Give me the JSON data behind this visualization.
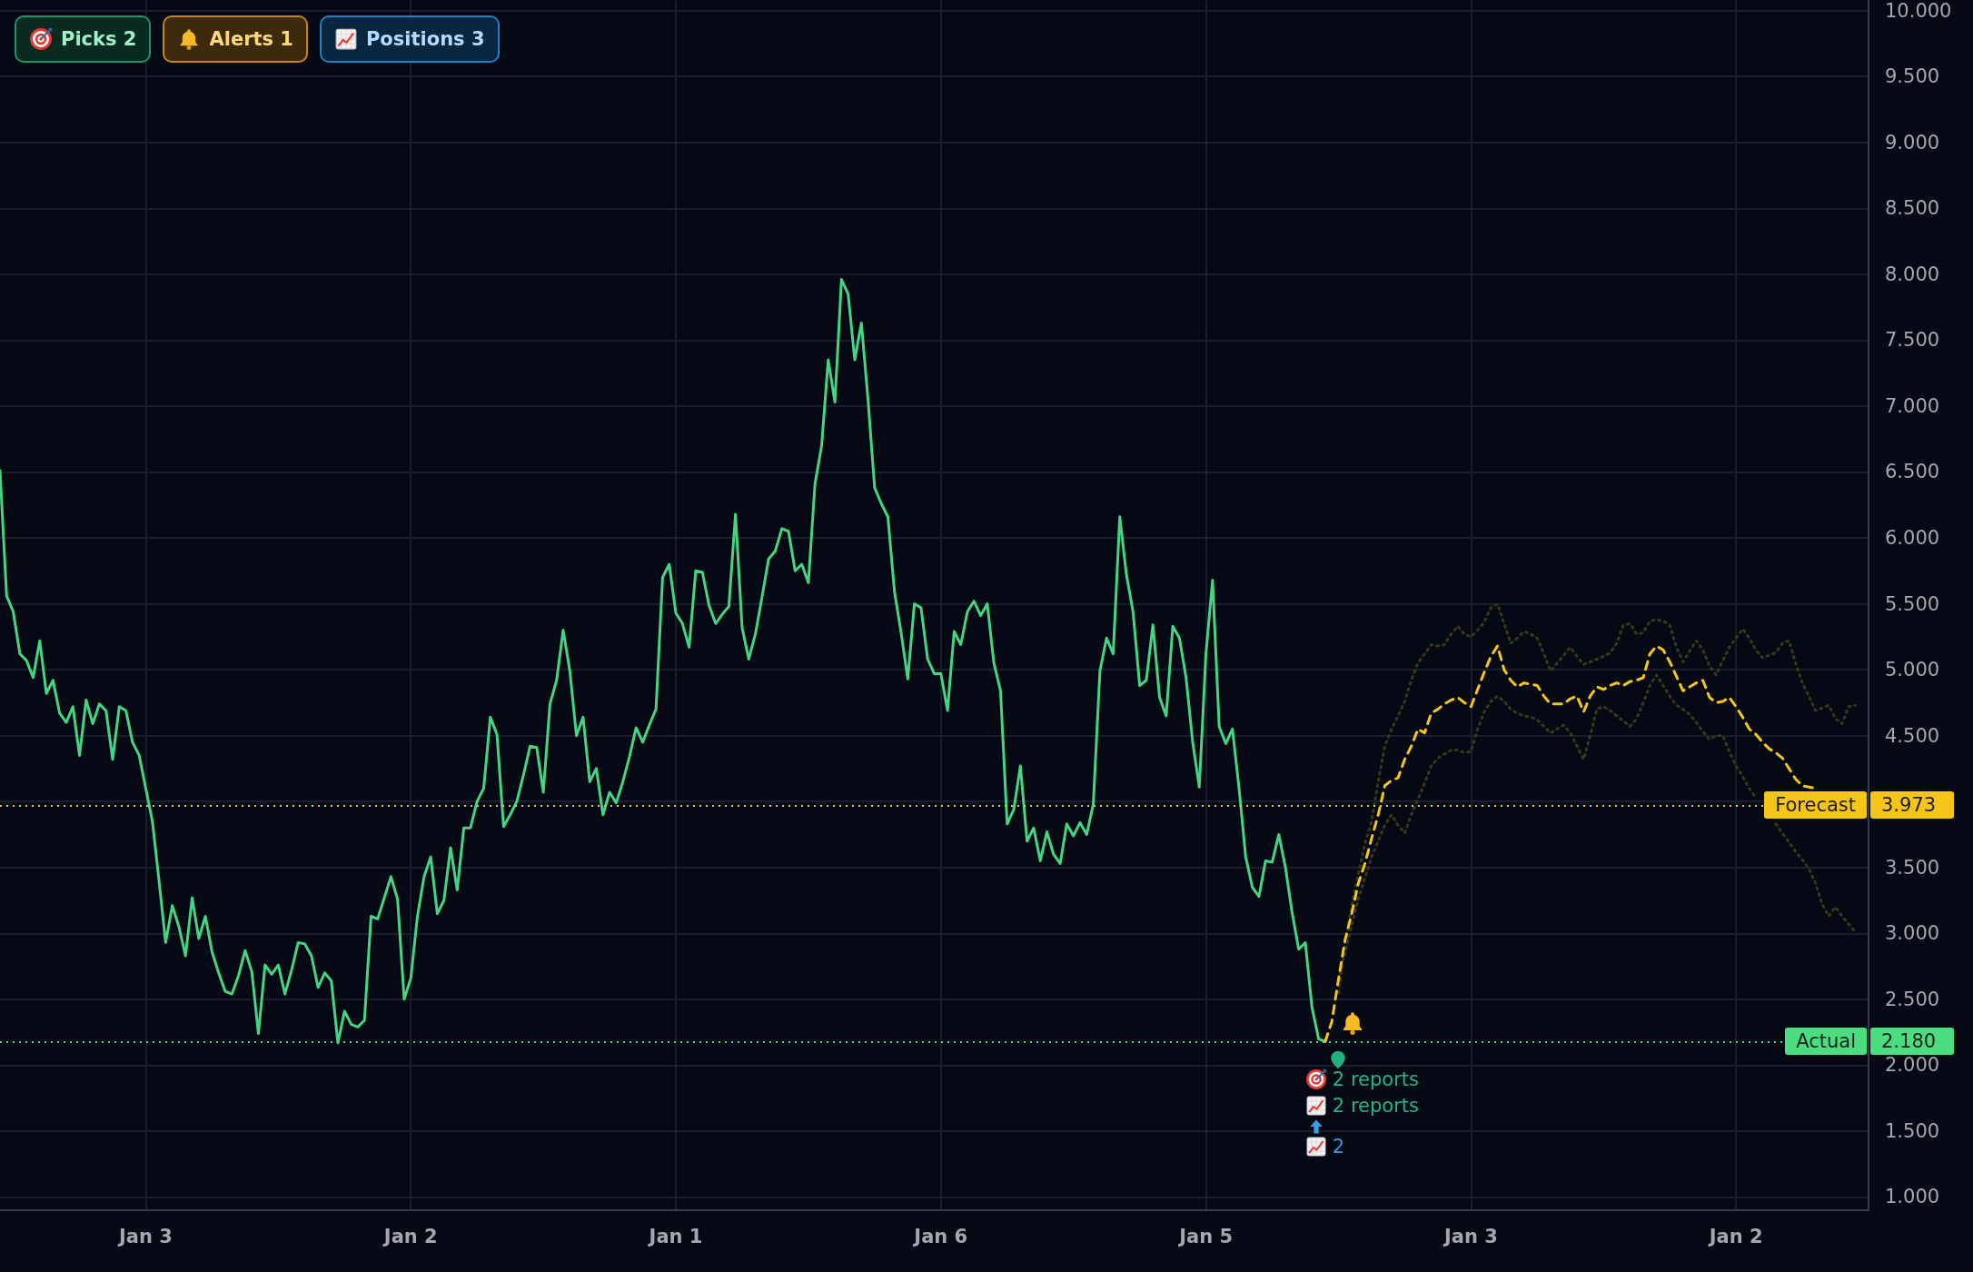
{
  "chart_data": {
    "type": "line",
    "marker": "none",
    "grid": true,
    "categories": [
      null,
      null,
      null,
      null,
      null,
      null,
      null,
      null,
      null,
      null,
      null,
      null,
      null,
      null,
      null,
      null,
      null,
      null,
      null,
      null,
      null,
      null,
      "Jan 3",
      null,
      null,
      null,
      null,
      null,
      null,
      null,
      null,
      null,
      null,
      null,
      null,
      null,
      null,
      null,
      null,
      null,
      null,
      null,
      null,
      null,
      null,
      null,
      null,
      null,
      null,
      null,
      null,
      null,
      null,
      null,
      null,
      null,
      null,
      null,
      null,
      null,
      null,
      null,
      "Jan 2",
      null,
      null,
      null,
      null,
      null,
      null,
      null,
      null,
      null,
      null,
      null,
      null,
      null,
      null,
      null,
      null,
      null,
      null,
      null,
      null,
      null,
      null,
      null,
      null,
      null,
      null,
      null,
      null,
      null,
      null,
      null,
      null,
      null,
      null,
      null,
      null,
      null,
      null,
      null,
      "Jan 1",
      null,
      null,
      null,
      null,
      null,
      null,
      null,
      null,
      null,
      null,
      null,
      null,
      null,
      null,
      null,
      null,
      null,
      null,
      null,
      null,
      null,
      null,
      null,
      null,
      null,
      null,
      null,
      null,
      null,
      null,
      null,
      null,
      null,
      null,
      null,
      null,
      null,
      null,
      null,
      "Jan 6",
      null,
      null,
      null,
      null,
      null,
      null,
      null,
      null,
      null,
      null,
      null,
      null,
      null,
      null,
      null,
      null,
      null,
      null,
      null,
      null,
      null,
      null,
      null,
      null,
      null,
      null,
      null,
      null,
      null,
      null,
      null,
      null,
      null,
      null,
      null,
      null,
      null,
      null,
      null,
      "Jan 5",
      null,
      null,
      null,
      null,
      null,
      null,
      null,
      null,
      null,
      null,
      null,
      null,
      null,
      null,
      null,
      null,
      null,
      null,
      null,
      null,
      null,
      null,
      null,
      null,
      null,
      null,
      null,
      null,
      null,
      null,
      null,
      null,
      null,
      null,
      null,
      null,
      null,
      null,
      null,
      "Jan 3",
      null,
      null,
      null,
      null,
      null,
      null,
      null,
      null,
      null,
      null,
      null,
      null,
      null,
      null,
      null,
      null,
      null,
      null,
      null,
      null,
      null,
      null,
      null,
      null,
      null,
      null,
      null,
      null,
      null,
      null,
      null,
      null,
      null,
      null,
      null,
      null,
      null,
      null,
      null,
      "Jan 2",
      null,
      null,
      null,
      null,
      null,
      null,
      null,
      null,
      null,
      null,
      null,
      null,
      null,
      null,
      null,
      null,
      null,
      null,
      null,
      null
    ],
    "ylim": [
      0.9,
      10.08
    ],
    "yticks": [
      {
        "value": 1,
        "label": "1.000"
      },
      {
        "value": 1.5,
        "label": "1.500"
      },
      {
        "value": 2,
        "label": "2.000"
      },
      {
        "value": 2.5,
        "label": "2.500"
      },
      {
        "value": 3,
        "label": "3.000"
      },
      {
        "value": 3.5,
        "label": "3.500"
      },
      {
        "value": 4,
        "label": null
      },
      {
        "value": 4.5,
        "label": "4.500"
      },
      {
        "value": 5,
        "label": "5.000"
      },
      {
        "value": 5.5,
        "label": "5.500"
      },
      {
        "value": 6,
        "label": "6.000"
      },
      {
        "value": 6.5,
        "label": "6.500"
      },
      {
        "value": 7,
        "label": "7.000"
      },
      {
        "value": 7.5,
        "label": "7.500"
      },
      {
        "value": 8,
        "label": "8.000"
      },
      {
        "value": 8.5,
        "label": "8.500"
      },
      {
        "value": 9,
        "label": "9.000"
      },
      {
        "value": 9.5,
        "label": "9.500"
      },
      {
        "value": 10,
        "label": "10.000"
      }
    ],
    "series": [
      {
        "color": "#3a3617",
        "line_style": "dotted",
        "values": [
          null,
          null,
          null,
          null,
          null,
          null,
          null,
          null,
          null,
          null,
          null,
          null,
          null,
          null,
          null,
          null,
          null,
          null,
          null,
          null,
          null,
          null,
          null,
          null,
          null,
          null,
          null,
          null,
          null,
          null,
          null,
          null,
          null,
          null,
          null,
          null,
          null,
          null,
          null,
          null,
          null,
          null,
          null,
          null,
          null,
          null,
          null,
          null,
          null,
          null,
          null,
          null,
          null,
          null,
          null,
          null,
          null,
          null,
          null,
          null,
          null,
          null,
          null,
          null,
          null,
          null,
          null,
          null,
          null,
          null,
          null,
          null,
          null,
          null,
          null,
          null,
          null,
          null,
          null,
          null,
          null,
          null,
          null,
          null,
          null,
          null,
          null,
          null,
          null,
          null,
          null,
          null,
          null,
          null,
          null,
          null,
          null,
          null,
          null,
          null,
          null,
          null,
          null,
          null,
          null,
          null,
          null,
          null,
          null,
          null,
          null,
          null,
          null,
          null,
          null,
          null,
          null,
          null,
          null,
          null,
          null,
          null,
          null,
          null,
          null,
          null,
          null,
          null,
          null,
          null,
          null,
          null,
          null,
          null,
          null,
          null,
          null,
          null,
          null,
          null,
          null,
          null,
          null,
          null,
          null,
          null,
          null,
          null,
          null,
          null,
          null,
          null,
          null,
          null,
          null,
          null,
          null,
          null,
          null,
          null,
          null,
          null,
          null,
          null,
          null,
          null,
          null,
          null,
          null,
          null,
          null,
          null,
          null,
          null,
          null,
          null,
          null,
          null,
          null,
          null,
          null,
          null,
          null,
          null,
          null,
          null,
          null,
          null,
          null,
          null,
          null,
          null,
          null,
          null,
          null,
          null,
          null,
          null,
          null,
          null,
          null,
          null,
          2.55,
          2.9,
          3.21,
          3.45,
          3.68,
          3.85,
          4.15,
          4.42,
          4.55,
          4.65,
          4.76,
          4.92,
          5.05,
          5.12,
          5.19,
          5.18,
          5.19,
          5.27,
          5.33,
          5.27,
          5.25,
          5.3,
          5.36,
          5.47,
          5.5,
          5.35,
          5.2,
          5.24,
          5.29,
          5.27,
          5.24,
          5.12,
          4.99,
          5.05,
          5.11,
          5.17,
          5.1,
          5.04,
          5.06,
          5.08,
          5.1,
          5.13,
          5.2,
          5.34,
          5.35,
          5.27,
          5.28,
          5.37,
          5.38,
          5.37,
          5.34,
          5.17,
          5.06,
          5.14,
          5.22,
          5.15,
          5.03,
          4.96,
          5.07,
          5.17,
          5.24,
          5.31,
          5.24,
          5.15,
          5.09,
          5.11,
          5.13,
          5.2,
          5.22,
          5.05,
          4.9,
          4.8,
          4.69,
          4.71,
          4.73,
          4.63,
          4.59,
          4.72,
          4.73,
          null,
          null
        ]
      },
      {
        "color": "#3a3617",
        "line_style": "dotted",
        "values": [
          null,
          null,
          null,
          null,
          null,
          null,
          null,
          null,
          null,
          null,
          null,
          null,
          null,
          null,
          null,
          null,
          null,
          null,
          null,
          null,
          null,
          null,
          null,
          null,
          null,
          null,
          null,
          null,
          null,
          null,
          null,
          null,
          null,
          null,
          null,
          null,
          null,
          null,
          null,
          null,
          null,
          null,
          null,
          null,
          null,
          null,
          null,
          null,
          null,
          null,
          null,
          null,
          null,
          null,
          null,
          null,
          null,
          null,
          null,
          null,
          null,
          null,
          null,
          null,
          null,
          null,
          null,
          null,
          null,
          null,
          null,
          null,
          null,
          null,
          null,
          null,
          null,
          null,
          null,
          null,
          null,
          null,
          null,
          null,
          null,
          null,
          null,
          null,
          null,
          null,
          null,
          null,
          null,
          null,
          null,
          null,
          null,
          null,
          null,
          null,
          null,
          null,
          null,
          null,
          null,
          null,
          null,
          null,
          null,
          null,
          null,
          null,
          null,
          null,
          null,
          null,
          null,
          null,
          null,
          null,
          null,
          null,
          null,
          null,
          null,
          null,
          null,
          null,
          null,
          null,
          null,
          null,
          null,
          null,
          null,
          null,
          null,
          null,
          null,
          null,
          null,
          null,
          null,
          null,
          null,
          null,
          null,
          null,
          null,
          null,
          null,
          null,
          null,
          null,
          null,
          null,
          null,
          null,
          null,
          null,
          null,
          null,
          null,
          null,
          null,
          null,
          null,
          null,
          null,
          null,
          null,
          null,
          null,
          null,
          null,
          null,
          null,
          null,
          null,
          null,
          null,
          null,
          null,
          null,
          null,
          null,
          null,
          null,
          null,
          null,
          null,
          null,
          null,
          null,
          null,
          null,
          null,
          null,
          null,
          null,
          null,
          null,
          2.65,
          2.85,
          3.06,
          3.26,
          3.42,
          3.58,
          3.7,
          3.82,
          3.9,
          3.82,
          3.76,
          3.9,
          4.02,
          4.14,
          4.27,
          4.33,
          4.36,
          4.39,
          4.39,
          4.37,
          4.38,
          4.55,
          4.68,
          4.76,
          4.8,
          4.76,
          4.7,
          4.67,
          4.65,
          4.64,
          4.62,
          4.57,
          4.52,
          4.55,
          4.58,
          4.52,
          4.42,
          4.32,
          4.5,
          4.7,
          4.72,
          4.69,
          4.65,
          4.61,
          4.57,
          4.63,
          4.75,
          4.88,
          4.96,
          4.88,
          4.8,
          4.73,
          4.7,
          4.66,
          4.6,
          4.53,
          4.47,
          4.5,
          4.5,
          4.38,
          4.27,
          4.19,
          4.1,
          4.03,
          null,
          null,
          3.83,
          3.76,
          3.69,
          3.62,
          3.56,
          3.49,
          3.38,
          3.22,
          3.13,
          3.2,
          3.13,
          3.07,
          3.01,
          null,
          null
        ]
      },
      {
        "color": "#45d483",
        "line_style": "solid",
        "values": [
          6.51,
          5.56,
          5.44,
          5.12,
          5.07,
          4.94,
          5.22,
          4.82,
          4.92,
          4.67,
          4.6,
          4.72,
          4.35,
          4.77,
          4.59,
          4.74,
          4.69,
          4.32,
          4.72,
          4.69,
          4.45,
          4.35,
          4.1,
          3.85,
          3.4,
          2.93,
          3.21,
          3.05,
          2.83,
          3.27,
          2.96,
          3.13,
          2.86,
          2.7,
          2.56,
          2.54,
          2.68,
          2.87,
          2.71,
          2.24,
          2.76,
          2.69,
          2.76,
          2.54,
          2.72,
          2.93,
          2.92,
          2.83,
          2.59,
          2.7,
          2.64,
          2.17,
          2.41,
          2.31,
          2.29,
          2.34,
          3.13,
          3.11,
          3.27,
          3.43,
          3.26,
          2.5,
          2.66,
          3.13,
          3.43,
          3.58,
          3.15,
          3.25,
          3.65,
          3.33,
          3.8,
          3.8,
          4.0,
          4.1,
          4.64,
          4.51,
          3.81,
          3.9,
          4.0,
          4.2,
          4.42,
          4.41,
          4.07,
          4.74,
          4.92,
          5.3,
          4.99,
          4.5,
          4.64,
          4.15,
          4.25,
          3.9,
          4.07,
          3.99,
          4.15,
          4.34,
          4.56,
          4.45,
          4.58,
          4.7,
          5.7,
          5.8,
          5.43,
          5.35,
          5.17,
          5.75,
          5.74,
          5.49,
          5.35,
          5.42,
          5.48,
          6.18,
          5.32,
          5.08,
          5.27,
          5.55,
          5.84,
          5.9,
          6.07,
          6.05,
          5.75,
          5.8,
          5.66,
          6.41,
          6.7,
          7.35,
          7.03,
          7.96,
          7.85,
          7.35,
          7.63,
          7.05,
          6.38,
          6.26,
          6.16,
          5.59,
          5.28,
          4.93,
          5.5,
          5.47,
          5.08,
          4.97,
          4.97,
          4.69,
          5.29,
          5.19,
          5.44,
          5.52,
          5.41,
          5.5,
          5.05,
          4.84,
          3.83,
          3.94,
          4.27,
          3.7,
          3.8,
          3.55,
          3.77,
          3.6,
          3.53,
          3.83,
          3.74,
          3.84,
          3.75,
          3.98,
          4.99,
          5.24,
          5.12,
          6.16,
          5.72,
          5.44,
          4.88,
          4.92,
          5.34,
          4.79,
          4.65,
          5.33,
          5.24,
          4.94,
          4.45,
          4.11,
          5.12,
          5.68,
          4.57,
          4.44,
          4.55,
          4.1,
          3.58,
          3.35,
          3.28,
          3.55,
          3.54,
          3.75,
          3.5,
          3.16,
          2.88,
          2.93,
          2.44,
          2.2,
          2.18,
          null,
          null,
          null,
          null,
          null,
          null,
          null,
          null,
          null,
          null,
          null,
          null,
          null,
          null,
          null,
          null,
          null,
          null,
          null,
          null,
          null,
          null,
          null,
          null,
          null,
          null,
          null,
          null,
          null,
          null,
          null,
          null,
          null,
          null,
          null,
          null,
          null,
          null,
          null,
          null,
          null,
          null,
          null,
          null,
          null,
          null,
          null,
          null,
          null,
          null,
          null,
          null,
          null,
          null,
          null,
          null,
          null,
          null,
          null,
          null,
          null,
          null,
          null,
          null,
          null,
          null,
          null,
          null,
          null,
          null,
          null,
          null,
          null,
          null,
          null,
          null,
          null,
          null,
          null,
          null,
          null,
          null
        ]
      },
      {
        "color": "#f5c518",
        "line_style": "dashed",
        "values": [
          null,
          null,
          null,
          null,
          null,
          null,
          null,
          null,
          null,
          null,
          null,
          null,
          null,
          null,
          null,
          null,
          null,
          null,
          null,
          null,
          null,
          null,
          null,
          null,
          null,
          null,
          null,
          null,
          null,
          null,
          null,
          null,
          null,
          null,
          null,
          null,
          null,
          null,
          null,
          null,
          null,
          null,
          null,
          null,
          null,
          null,
          null,
          null,
          null,
          null,
          null,
          null,
          null,
          null,
          null,
          null,
          null,
          null,
          null,
          null,
          null,
          null,
          null,
          null,
          null,
          null,
          null,
          null,
          null,
          null,
          null,
          null,
          null,
          null,
          null,
          null,
          null,
          null,
          null,
          null,
          null,
          null,
          null,
          null,
          null,
          null,
          null,
          null,
          null,
          null,
          null,
          null,
          null,
          null,
          null,
          null,
          null,
          null,
          null,
          null,
          null,
          null,
          null,
          null,
          null,
          null,
          null,
          null,
          null,
          null,
          null,
          null,
          null,
          null,
          null,
          null,
          null,
          null,
          null,
          null,
          null,
          null,
          null,
          null,
          null,
          null,
          null,
          null,
          null,
          null,
          null,
          null,
          null,
          null,
          null,
          null,
          null,
          null,
          null,
          null,
          null,
          null,
          null,
          null,
          null,
          null,
          null,
          null,
          null,
          null,
          null,
          null,
          null,
          null,
          null,
          null,
          null,
          null,
          null,
          null,
          null,
          null,
          null,
          null,
          null,
          null,
          null,
          null,
          null,
          null,
          null,
          null,
          null,
          null,
          null,
          null,
          null,
          null,
          null,
          null,
          null,
          null,
          null,
          null,
          null,
          null,
          null,
          null,
          null,
          null,
          null,
          null,
          null,
          null,
          null,
          null,
          null,
          null,
          null,
          null,
          2.18,
          2.33,
          2.65,
          2.95,
          3.15,
          3.38,
          3.53,
          3.72,
          3.9,
          4.12,
          4.16,
          4.18,
          4.32,
          4.42,
          4.55,
          4.52,
          4.67,
          4.7,
          4.74,
          4.77,
          4.79,
          4.75,
          4.72,
          4.85,
          4.98,
          5.1,
          5.18,
          5.0,
          4.92,
          4.87,
          4.9,
          4.89,
          4.88,
          4.8,
          4.74,
          4.74,
          4.74,
          4.78,
          4.8,
          4.68,
          4.8,
          4.87,
          4.85,
          4.88,
          4.9,
          4.88,
          4.91,
          4.92,
          4.94,
          5.12,
          5.18,
          5.15,
          5.06,
          4.95,
          4.84,
          4.87,
          4.9,
          4.92,
          4.79,
          4.75,
          4.76,
          4.79,
          4.72,
          4.64,
          4.55,
          4.51,
          4.45,
          4.4,
          4.37,
          4.33,
          4.25,
          4.17,
          4.12,
          4.11,
          4.1,
          null,
          null,
          null,
          null,
          null,
          null,
          null,
          null
        ]
      }
    ],
    "ref_lines": [
      {
        "axis": "y",
        "value": 3.973,
        "label": "Forecast",
        "color": "#f5c518",
        "line_style": "dotted"
      },
      {
        "axis": "y",
        "value": 2.18,
        "label": "Actual",
        "color": "#4ade80",
        "line_style": "dotted"
      }
    ],
    "annotations": [
      "Picks 2",
      "Alerts 1",
      "Positions 3",
      "2 reports",
      "2 reports",
      "2",
      "3.973",
      "2.180"
    ]
  }
}
